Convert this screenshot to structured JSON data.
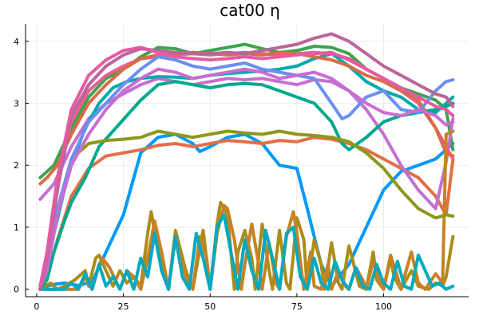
{
  "chart_data": {
    "type": "line",
    "title": "cat00 η",
    "xlabel": "",
    "ylabel": "",
    "xlim": [
      -3.2,
      124.5
    ],
    "ylim": [
      -0.12,
      4.28
    ],
    "x_ticks": [
      0,
      25,
      50,
      75,
      100
    ],
    "y_ticks": [
      0,
      1,
      2,
      3,
      4
    ],
    "grid": true,
    "legend": "none",
    "series": [
      {
        "color": "#009af9",
        "x": [
          1,
          3,
          5,
          8,
          12,
          16,
          20,
          25,
          30,
          35,
          40,
          45,
          47,
          50,
          55,
          60,
          65,
          70,
          75,
          78,
          82,
          85,
          90,
          95,
          100,
          105,
          110,
          115,
          118,
          120
        ],
        "y": [
          0,
          0.05,
          0.08,
          0.1,
          0.06,
          0.12,
          0.6,
          1.2,
          2.2,
          2.45,
          2.5,
          2.35,
          2.22,
          2.3,
          2.45,
          2.5,
          2.35,
          2.0,
          1.95,
          1.3,
          0.4,
          0.05,
          0.4,
          1.0,
          1.6,
          1.9,
          2.0,
          2.1,
          2.25,
          2.35
        ]
      },
      {
        "color": "#e26f46",
        "x": [
          1,
          3,
          6,
          10,
          15,
          20,
          25,
          30,
          35,
          40,
          45,
          50,
          55,
          60,
          65,
          70,
          75,
          80,
          85,
          90,
          95,
          100,
          105,
          110,
          115,
          118,
          120
        ],
        "y": [
          0,
          0.2,
          0.8,
          1.5,
          1.95,
          2.15,
          2.2,
          2.25,
          2.32,
          2.35,
          2.3,
          2.35,
          2.4,
          2.38,
          2.35,
          2.4,
          2.38,
          2.45,
          2.42,
          2.35,
          2.25,
          2.1,
          1.95,
          1.8,
          1.5,
          1.2,
          2.1
        ]
      },
      {
        "color": "#3ea44e",
        "x": [
          1,
          5,
          10,
          15,
          20,
          25,
          30,
          35,
          40,
          45,
          50,
          55,
          60,
          65,
          70,
          75,
          80,
          85,
          90,
          95,
          100,
          105,
          110,
          115,
          118,
          120
        ],
        "y": [
          1.8,
          2.0,
          2.6,
          3.1,
          3.4,
          3.55,
          3.75,
          3.9,
          3.88,
          3.8,
          3.85,
          3.9,
          3.95,
          3.88,
          3.82,
          3.85,
          3.92,
          3.9,
          3.8,
          3.55,
          3.4,
          3.25,
          3.15,
          3.05,
          2.9,
          2.25
        ]
      },
      {
        "color": "#c271d2",
        "x": [
          1,
          5,
          10,
          15,
          20,
          25,
          30,
          35,
          40,
          45,
          50,
          55,
          60,
          65,
          70,
          75,
          80,
          85,
          90,
          95,
          100,
          105,
          110,
          115,
          118,
          120
        ],
        "y": [
          1.45,
          1.7,
          2.3,
          2.75,
          3.0,
          3.15,
          3.3,
          3.4,
          3.35,
          3.3,
          3.35,
          3.4,
          3.38,
          3.4,
          3.35,
          3.3,
          3.38,
          3.35,
          3.2,
          2.9,
          2.5,
          2.0,
          1.6,
          1.3,
          2.05,
          2.75
        ]
      },
      {
        "color": "#ac8d18",
        "x": [
          1,
          4,
          6,
          8,
          11,
          14,
          15,
          17,
          18,
          20,
          22,
          24,
          26,
          28,
          30,
          32,
          33,
          35,
          38,
          40,
          43,
          45,
          48,
          50,
          52,
          53,
          55,
          57,
          58,
          60,
          62,
          63,
          65,
          67,
          68,
          70,
          72,
          73,
          75,
          77,
          78,
          80,
          82,
          83,
          85,
          87,
          88,
          90,
          93,
          95,
          97,
          98,
          100,
          102,
          103,
          105,
          108,
          110,
          113,
          115,
          117,
          118,
          120
        ],
        "y": [
          0,
          0.1,
          0,
          0.05,
          0.15,
          0.3,
          0.05,
          0.5,
          0.55,
          0.3,
          0.05,
          0.3,
          0.1,
          0.2,
          0.05,
          0.9,
          1.25,
          0.6,
          0,
          0.95,
          0.3,
          0,
          0.95,
          0,
          1.05,
          1.4,
          1.2,
          0,
          0.6,
          0.95,
          0.5,
          0,
          1.05,
          0.3,
          0,
          0.95,
          0.1,
          0,
          1.15,
          0.8,
          0,
          0.8,
          0.4,
          0,
          0.75,
          0.1,
          0,
          0.7,
          0.05,
          0,
          0.6,
          0.15,
          0,
          0.5,
          0.2,
          0,
          0.3,
          0.05,
          0,
          0.1,
          0.05,
          0.2,
          0.85
        ]
      },
      {
        "color": "#00a9ad",
        "x": [
          1,
          3,
          5,
          8,
          10,
          14,
          18,
          22,
          26,
          30,
          35,
          40,
          45,
          50,
          55,
          60,
          65,
          70,
          75,
          80,
          85,
          90,
          95,
          100,
          105,
          110,
          115,
          118,
          120
        ],
        "y": [
          0.05,
          0.3,
          0.9,
          1.6,
          2.0,
          2.6,
          3.0,
          3.25,
          3.35,
          3.4,
          3.43,
          3.42,
          3.4,
          3.45,
          3.48,
          3.5,
          3.52,
          3.55,
          3.6,
          3.72,
          3.8,
          3.6,
          3.35,
          3.2,
          3.1,
          2.9,
          2.85,
          3.0,
          3.1
        ]
      },
      {
        "color": "#ed5e93",
        "x": [
          1,
          3,
          6,
          10,
          15,
          20,
          25,
          30,
          35,
          40,
          45,
          50,
          55,
          60,
          65,
          70,
          75,
          80,
          85,
          90,
          95,
          100,
          105,
          110,
          115,
          118,
          120
        ],
        "y": [
          0,
          0.5,
          1.8,
          2.7,
          3.2,
          3.45,
          3.6,
          3.72,
          3.75,
          3.78,
          3.8,
          3.78,
          3.8,
          3.82,
          3.8,
          3.78,
          3.8,
          3.82,
          3.8,
          3.72,
          3.55,
          3.4,
          3.2,
          3.0,
          2.6,
          2.3,
          2.1
        ]
      },
      {
        "color": "#c68225",
        "x": [
          1,
          5,
          12,
          14,
          16,
          18,
          19,
          21,
          24,
          26,
          28,
          30,
          32,
          34,
          36,
          38,
          40,
          43,
          45,
          47,
          49,
          50,
          52,
          54,
          55,
          57,
          59,
          60,
          62,
          64,
          65,
          67,
          69,
          70,
          72,
          74,
          75,
          77,
          79,
          80,
          82,
          84,
          85,
          87,
          89,
          90,
          92,
          94,
          95,
          97,
          99,
          100,
          102,
          104,
          105,
          108,
          110,
          112,
          115,
          117,
          118,
          120
        ],
        "y": [
          0,
          0,
          0,
          0.2,
          0,
          0.4,
          0.5,
          0.35,
          0,
          0.3,
          0.2,
          0,
          0.5,
          1.1,
          0.6,
          0,
          0.85,
          0.2,
          0,
          0.85,
          0.5,
          0,
          0.9,
          1.35,
          1.3,
          0.8,
          0,
          0.4,
          1.05,
          0.4,
          0,
          0.75,
          0.1,
          0,
          0.85,
          1.25,
          0.9,
          0,
          0.6,
          0.05,
          0,
          0.4,
          0,
          0.3,
          0.05,
          0,
          0.35,
          0.15,
          0,
          0.45,
          0.1,
          0,
          0.55,
          0.2,
          0,
          0.6,
          0.1,
          0,
          0.25,
          0.1,
          2.5,
          2.55
        ]
      },
      {
        "color": "#00a98d",
        "x": [
          1,
          3,
          5,
          8,
          10,
          14,
          18,
          22,
          26,
          30,
          35,
          40,
          45,
          50,
          55,
          60,
          65,
          70,
          75,
          80,
          85,
          88,
          90,
          95,
          100,
          105,
          110,
          115,
          118,
          120
        ],
        "y": [
          0,
          0.15,
          0.6,
          1.1,
          1.4,
          1.8,
          2.3,
          2.55,
          2.8,
          3.05,
          3.3,
          3.35,
          3.3,
          3.25,
          3.3,
          3.32,
          3.3,
          3.2,
          3.1,
          3.0,
          2.7,
          2.35,
          2.25,
          2.45,
          2.7,
          2.8,
          2.85,
          2.9,
          2.95,
          3.0
        ]
      },
      {
        "color": "#8e971d",
        "x": [
          1,
          3,
          6,
          10,
          15,
          20,
          25,
          30,
          35,
          40,
          45,
          50,
          55,
          60,
          65,
          70,
          75,
          80,
          85,
          90,
          95,
          100,
          105,
          110,
          115,
          118,
          120
        ],
        "y": [
          0.05,
          0.4,
          1.3,
          2.1,
          2.35,
          2.4,
          2.42,
          2.45,
          2.55,
          2.5,
          2.45,
          2.5,
          2.55,
          2.52,
          2.5,
          2.55,
          2.5,
          2.48,
          2.45,
          2.38,
          2.2,
          1.95,
          1.6,
          1.3,
          1.15,
          1.2,
          1.18
        ]
      },
      {
        "color": "#00a9c0",
        "x": [
          1,
          5,
          8,
          10,
          12,
          14,
          16,
          18,
          20,
          22,
          24,
          26,
          28,
          30,
          32,
          34,
          36,
          38,
          40,
          42,
          44,
          46,
          48,
          50,
          52,
          54,
          56,
          58,
          60,
          62,
          64,
          66,
          68,
          70,
          72,
          74,
          76,
          78,
          80,
          82,
          84,
          86,
          88,
          90,
          92,
          94,
          96,
          98,
          100,
          102,
          104,
          106,
          108,
          110,
          112,
          114,
          116,
          118,
          120
        ],
        "y": [
          0,
          0,
          0,
          0.1,
          0,
          0.25,
          0,
          0.4,
          0.05,
          0.2,
          0,
          0.3,
          0,
          0.5,
          0.2,
          0.9,
          0.3,
          0,
          0.85,
          0.2,
          0,
          0.9,
          0.5,
          0,
          1.0,
          1.2,
          0.6,
          0,
          0.8,
          0.3,
          0,
          0.95,
          0.5,
          0,
          0.9,
          1.0,
          0.2,
          0,
          0.5,
          0.1,
          0,
          0.45,
          0.15,
          0,
          0.35,
          0.05,
          0,
          0.4,
          0.1,
          0,
          0.45,
          0.05,
          0,
          0.55,
          0.3,
          0.05,
          0.1,
          0,
          0.05
        ]
      },
      {
        "color": "#d76d46",
        "x": [
          1,
          3,
          6,
          10,
          15,
          20,
          25,
          30,
          35,
          40,
          45,
          50,
          55,
          60,
          65,
          70,
          75,
          80,
          85,
          90,
          95,
          100,
          105,
          110,
          115,
          118,
          120
        ],
        "y": [
          1.7,
          1.8,
          2.0,
          2.5,
          3.0,
          3.3,
          3.55,
          3.72,
          3.78,
          3.8,
          3.82,
          3.8,
          3.78,
          3.8,
          3.78,
          3.82,
          3.8,
          3.75,
          3.7,
          3.6,
          3.45,
          3.35,
          3.2,
          3.05,
          2.6,
          2.2,
          2.15
        ]
      },
      {
        "color": "#6b8ff2",
        "x": [
          1,
          4,
          7,
          10,
          15,
          20,
          25,
          30,
          35,
          40,
          45,
          50,
          55,
          60,
          65,
          70,
          75,
          80,
          85,
          88,
          90,
          95,
          100,
          105,
          110,
          115,
          118,
          120
        ],
        "y": [
          0.05,
          0.8,
          1.5,
          2.1,
          2.7,
          3.0,
          3.3,
          3.55,
          3.75,
          3.7,
          3.6,
          3.55,
          3.6,
          3.65,
          3.55,
          3.5,
          3.45,
          3.4,
          3.0,
          2.75,
          2.8,
          3.1,
          3.2,
          2.9,
          2.85,
          3.2,
          3.35,
          3.38
        ]
      },
      {
        "color": "#c86ed2",
        "x": [
          1,
          3,
          6,
          10,
          15,
          20,
          25,
          30,
          35,
          40,
          45,
          50,
          55,
          60,
          65,
          70,
          75,
          80,
          85,
          90,
          95,
          100,
          105,
          110,
          115,
          118,
          120
        ],
        "y": [
          0.02,
          0.3,
          1.2,
          2.0,
          2.5,
          2.9,
          3.2,
          3.4,
          3.55,
          3.5,
          3.4,
          3.45,
          3.5,
          3.55,
          3.5,
          3.4,
          3.45,
          3.5,
          3.4,
          3.2,
          3.0,
          2.85,
          2.8,
          2.9,
          2.8,
          2.65,
          2.7
        ]
      },
      {
        "color": "#b9669a",
        "x": [
          1,
          3,
          6,
          10,
          15,
          20,
          25,
          30,
          35,
          40,
          45,
          50,
          55,
          60,
          65,
          70,
          75,
          80,
          85,
          90,
          95,
          100,
          105,
          110,
          115,
          118,
          120
        ],
        "y": [
          0,
          0.5,
          1.6,
          2.8,
          3.3,
          3.6,
          3.78,
          3.88,
          3.85,
          3.82,
          3.8,
          3.8,
          3.82,
          3.8,
          3.85,
          3.9,
          3.95,
          4.05,
          4.12,
          4.0,
          3.8,
          3.6,
          3.45,
          3.3,
          3.15,
          3.1,
          2.95
        ]
      },
      {
        "color": "#e35ba2",
        "x": [
          1,
          3,
          6,
          10,
          15,
          20,
          25,
          30,
          35,
          40,
          45,
          50,
          55,
          60,
          65,
          70,
          75,
          80,
          85,
          90,
          95,
          100,
          105,
          110,
          115,
          118,
          120
        ],
        "y": [
          0.05,
          0.6,
          1.8,
          2.9,
          3.45,
          3.7,
          3.85,
          3.9,
          3.82,
          3.75,
          3.72,
          3.7,
          3.72,
          3.75,
          3.72,
          3.75,
          3.78,
          3.8,
          3.82,
          3.7,
          3.55,
          3.4,
          3.25,
          3.1,
          2.95,
          2.9,
          2.8
        ]
      }
    ]
  }
}
